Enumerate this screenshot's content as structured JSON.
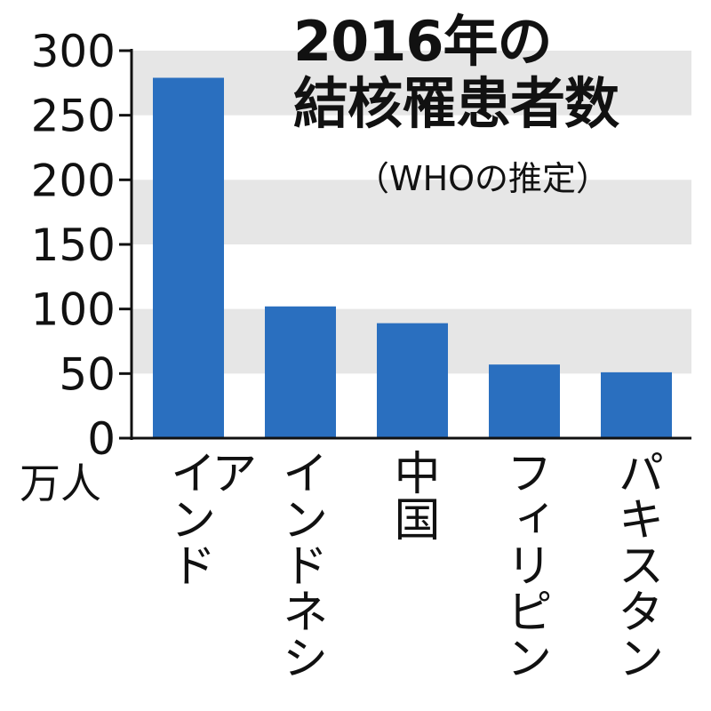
{
  "title_line1": "2016年の",
  "title_line2": "結核罹患者数",
  "subtitle": "（WHOの推定）",
  "unit": "万人",
  "colors": {
    "bar": "#2a6fbf",
    "band": "#e6e6e6",
    "axis": "#111111"
  },
  "chart_data": {
    "type": "bar",
    "categories": [
      "インド",
      "インドネシア",
      "中国",
      "フィリピン",
      "パキスタン"
    ],
    "values": [
      279,
      102,
      89,
      57,
      51
    ],
    "ylim": [
      0,
      300
    ],
    "yticks": [
      "0",
      "50",
      "100",
      "150",
      "200",
      "250",
      "300"
    ],
    "ylabel": "万人",
    "grid": "alternating bands"
  }
}
